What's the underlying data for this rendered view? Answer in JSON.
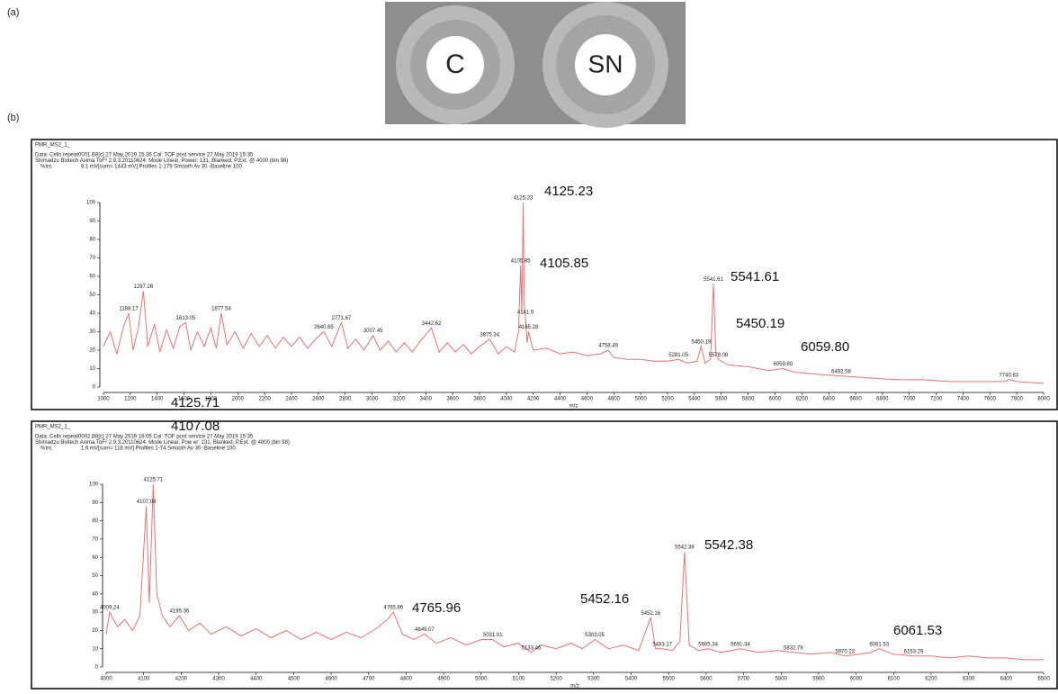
{
  "panel_labels": [
    "(a)",
    "(b)"
  ],
  "panel_a": {
    "disk_labels": [
      "C",
      "SN"
    ]
  },
  "chart_data": [
    {
      "type": "line",
      "title": "PMR_MS2_1_",
      "subtitle": [
        "Data: Cells repeat0001.B8[c] 27 May 2019 15:36 Cal: TOF post service 27 May 2019 15:35",
        "Shimadzu Biotech Axima ToF² 2.9.3.20110624: Mode Linear, Power: 131, Blanked, P.Ext. @ 4000 (bin 98)"
      ],
      "ylabel": "%Int.",
      "info": "8.1 mV[sum= 1443 mV] Profiles 1-179 Smooth Av 30 -Baseline 100",
      "xlabel": "m/z",
      "xlim": [
        1000,
        8000
      ],
      "ylim": [
        0,
        100
      ],
      "xticks": [
        1000,
        1200,
        1400,
        1600,
        1800,
        2000,
        2200,
        2400,
        2600,
        2800,
        3000,
        3200,
        3400,
        3600,
        3800,
        4000,
        4200,
        4400,
        4600,
        4800,
        5000,
        5200,
        5400,
        5600,
        5800,
        6000,
        6200,
        6400,
        6600,
        6800,
        7000,
        7200,
        7400,
        7600,
        7800,
        8000
      ],
      "yticks": [
        0,
        10,
        20,
        30,
        40,
        50,
        60,
        70,
        80,
        90,
        100
      ],
      "series": [
        {
          "color": "#f07070",
          "x": [
            1000,
            1050,
            1100,
            1150,
            1188.17,
            1220,
            1260,
            1297.26,
            1330,
            1380,
            1420,
            1470,
            1520,
            1570,
            1613.05,
            1650,
            1700,
            1750,
            1800,
            1840,
            1877.54,
            1920,
            1980,
            2040,
            2100,
            2160,
            2220,
            2280,
            2340,
            2400,
            2460,
            2520,
            2580,
            2640.65,
            2700,
            2771.67,
            2820,
            2880,
            2940,
            3007.45,
            3060,
            3120,
            3180,
            3240,
            3300,
            3360,
            3442.62,
            3500,
            3560,
            3620,
            3680,
            3740,
            3800,
            3875.34,
            3940,
            4000,
            4060,
            4090,
            4105.85,
            4115,
            4125.23,
            4133,
            4141.9,
            4155,
            4165.28,
            4200,
            4300,
            4400,
            4500,
            4600,
            4700,
            4758.49,
            4800,
            4900,
            5000,
            5100,
            5200,
            5281.05,
            5350,
            5420,
            5450.19,
            5480,
            5520,
            5541.61,
            5560,
            5578.08,
            5650,
            5800,
            5950,
            6059.8,
            6150,
            6300,
            6492.58,
            6700,
            6900,
            7100,
            7300,
            7500,
            7700,
            7740.83,
            7800,
            8000
          ],
          "values": [
            22,
            30,
            18,
            33,
            40,
            20,
            32,
            52,
            22,
            34,
            19,
            31,
            21,
            33,
            35,
            20,
            30,
            22,
            32,
            21,
            40,
            23,
            30,
            21,
            29,
            22,
            28,
            21,
            27,
            22,
            27,
            21,
            26,
            30,
            22,
            35,
            21,
            26,
            20,
            28,
            20,
            25,
            19,
            24,
            19,
            25,
            32,
            19,
            24,
            19,
            23,
            18,
            22,
            26,
            18,
            22,
            19,
            30,
            66,
            40,
            100,
            45,
            38,
            24,
            30,
            20,
            21,
            18,
            19,
            17,
            18,
            20,
            16,
            15,
            15,
            14,
            14,
            15,
            13,
            14,
            22,
            13,
            15,
            56,
            18,
            15,
            12,
            11,
            9,
            10,
            8,
            7,
            6,
            5,
            4,
            4,
            3,
            3,
            3,
            4,
            3,
            2
          ]
        }
      ],
      "peak_labels": [
        1188.17,
        1297.26,
        1613.05,
        1877.54,
        2640.65,
        2771.67,
        3007.45,
        3442.62,
        3875.34,
        4105.85,
        4125.23,
        4141.9,
        4165.28,
        4758.49,
        5281.05,
        5450.19,
        5541.61,
        5578.08,
        {
          "value": 6059.8,
          "label": "6059.80"
        },
        6492.58,
        7740.83
      ],
      "callouts": [
        4125.23,
        4105.85,
        5541.61,
        5450.19,
        {
          "value": 6059.8,
          "label": "6059.80"
        }
      ]
    },
    {
      "type": "line",
      "title": "PMR_MS2_1_",
      "subtitle": [
        "Data: Cells repeat0002.B8[c] 27 May 2019 16:05 Cal: TOF post service 27 May 2019 15:35",
        "Shimadzu Biotech Axima ToF² 2.9.3.20110624: Mode Linear, Pow er: 131, Blanked, P.Ext. @ 4000 (bin 98)"
      ],
      "ylabel": "%Int.",
      "info": "1.6 mV[sum= 118 mV] Profiles 1-74 Smooth Av 30 -Baseline 100",
      "xlabel": "m/z",
      "xlim": [
        4000,
        6500
      ],
      "ylim": [
        0,
        100
      ],
      "xticks": [
        4000,
        4100,
        4200,
        4300,
        4400,
        4500,
        4600,
        4700,
        4800,
        4900,
        5000,
        5100,
        5200,
        5300,
        5400,
        5500,
        5600,
        5700,
        5800,
        5900,
        6000,
        6100,
        6200,
        6300,
        6400,
        6500
      ],
      "yticks": [
        0,
        10,
        20,
        30,
        40,
        50,
        60,
        70,
        80,
        90,
        100
      ],
      "series": [
        {
          "color": "#f07070",
          "x": [
            4000,
            4009.24,
            4030,
            4050,
            4070,
            4090,
            4107.08,
            4115,
            4125.71,
            4135,
            4150,
            4170,
            4195.36,
            4220,
            4250,
            4280,
            4320,
            4360,
            4400,
            4440,
            4480,
            4520,
            4560,
            4600,
            4640,
            4680,
            4720,
            4750,
            4765.96,
            4790,
            4820,
            4849.07,
            4880,
            4920,
            4960,
            5000,
            5031.01,
            5060,
            5100,
            5133.46,
            5160,
            5200,
            5240,
            5270,
            5303.05,
            5340,
            5380,
            5420,
            5452.16,
            5465,
            5483.17,
            5510,
            5530,
            5542.38,
            5555,
            5580,
            5605.34,
            5640,
            5691.34,
            5740,
            5790,
            5832.78,
            5880,
            5930,
            5970.23,
            6010,
            6040,
            6061.53,
            6100,
            6153.29,
            6200,
            6250,
            6300,
            6350,
            6400,
            6450,
            6500
          ],
          "values": [
            18,
            30,
            22,
            26,
            20,
            28,
            88,
            35,
            100,
            40,
            28,
            22,
            28,
            20,
            24,
            18,
            22,
            17,
            21,
            16,
            20,
            15,
            19,
            15,
            19,
            16,
            21,
            26,
            30,
            18,
            15,
            18,
            13,
            16,
            12,
            15,
            15,
            11,
            13,
            8,
            12,
            10,
            13,
            10,
            15,
            10,
            12,
            9,
            27,
            10,
            10,
            9,
            14,
            63,
            12,
            9,
            10,
            8,
            10,
            8,
            9,
            8,
            7,
            8,
            6,
            7,
            8,
            10,
            7,
            6,
            6,
            5,
            6,
            5,
            5,
            4,
            4
          ]
        }
      ],
      "peak_labels": [
        4009.24,
        4107.08,
        4125.71,
        4195.36,
        4765.96,
        4849.07,
        5031.01,
        5133.46,
        5303.05,
        5452.16,
        5483.17,
        5542.38,
        5605.34,
        5691.34,
        5832.78,
        5970.23,
        6061.53,
        6153.29
      ],
      "callouts": [
        4125.71,
        4107.08,
        4765.96,
        5452.16,
        5542.38,
        6061.53
      ]
    }
  ]
}
